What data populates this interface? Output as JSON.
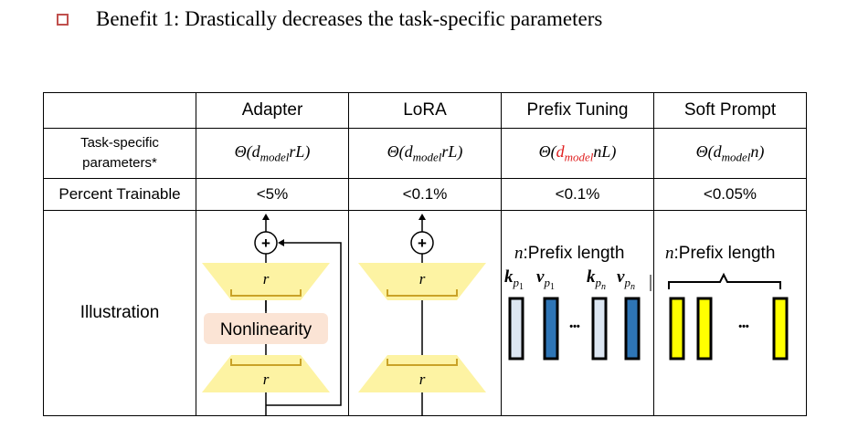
{
  "title": {
    "text": "Benefit 1: Drastically decreases the task-specific parameters",
    "bullet_color": "#c0504d"
  },
  "table": {
    "headers": [
      "",
      "Adapter",
      "LoRA",
      "Prefix Tuning",
      "Soft Prompt"
    ],
    "param_label": "Task-specific parameters*",
    "param_label_line1": "Task-specific",
    "param_label_line2": "parameters*",
    "params": [
      {
        "prefix": "Θ(d",
        "sub": "model",
        "suffix": "rL)"
      },
      {
        "prefix": "Θ(d",
        "sub": "model",
        "suffix": "rL)"
      },
      {
        "prefix": "Θ(",
        "red": "d",
        "sub": "model",
        "suffix": "nL)"
      },
      {
        "prefix": "Θ(d",
        "sub": "model",
        "suffix": "n)"
      }
    ],
    "percent_label": "Percent Trainable",
    "percents": [
      "<5%",
      "<0.1%",
      "<0.1%",
      "<0.05%"
    ],
    "illustration_label": "Illustration"
  },
  "illustrations": {
    "adapter": {
      "plus": "+",
      "rank_top": "r",
      "rank_bottom": "r",
      "nonlinearity": "Nonlinearity"
    },
    "lora": {
      "plus": "+",
      "rank_top": "r",
      "rank_bottom": "r"
    },
    "prefix": {
      "caption_var": "n",
      "caption_text": ":Prefix length",
      "k1": "k",
      "k1_sub": "p",
      "k1_subsub": "1",
      "v1": "v",
      "v1_sub": "p",
      "v1_subsub": "1",
      "kn": "k",
      "kn_sub": "p",
      "kn_subsub": "n",
      "vn": "v",
      "vn_sub": "p",
      "vn_subsub": "n",
      "ellipsis": "•••"
    },
    "soft": {
      "caption_var": "n",
      "caption_text": ":Prefix length",
      "ellipsis": "•••"
    }
  },
  "colors": {
    "trapezoid": "#fdf3a3",
    "nonlinearity_bg": "#fbe4d5",
    "light_blue": "#dce6f2",
    "dark_blue": "#2e75b6",
    "yellow": "#ffff00",
    "bracket_gold": "#c9a227"
  }
}
